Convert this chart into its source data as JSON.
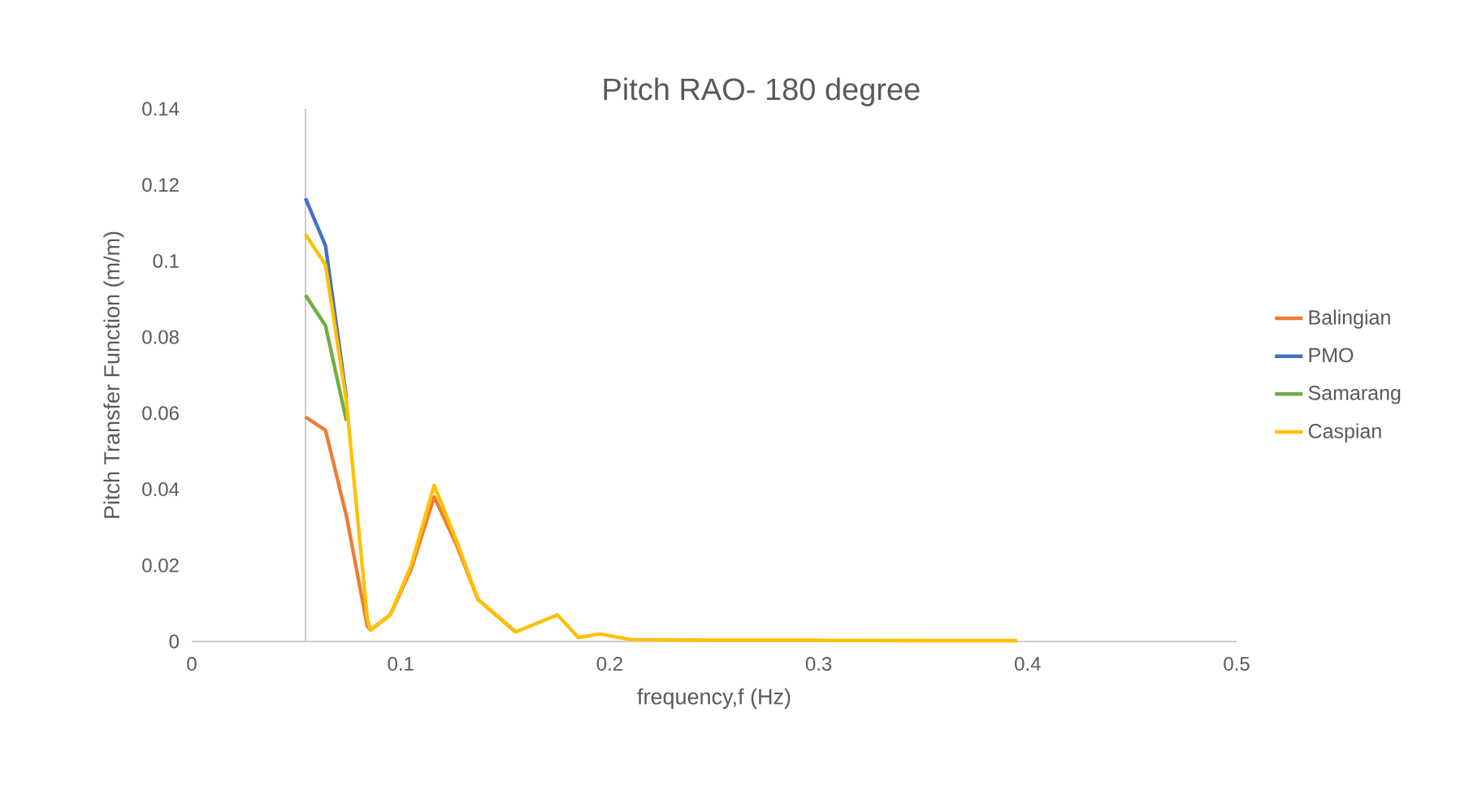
{
  "chart_data": {
    "type": "line",
    "title": "Pitch RAO- 180 degree",
    "xlabel": "frequency,f (Hz)",
    "ylabel": "Pitch Transfer Function (m/m)",
    "x": [
      0.0544,
      0.064,
      0.074,
      0.084,
      0.0855,
      0.095,
      0.105,
      0.116,
      0.127,
      0.137,
      0.155,
      0.175,
      0.185,
      0.195,
      0.21,
      0.25,
      0.3,
      0.35,
      0.395
    ],
    "series": [
      {
        "name": "Balingian",
        "color": "#ed7d31",
        "values": [
          0.059,
          0.0555,
          0.033,
          0.004,
          0.003,
          0.007,
          0.019,
          0.038,
          0.025,
          0.011,
          0.0025,
          null,
          null,
          null,
          null,
          null,
          null,
          null,
          null
        ]
      },
      {
        "name": "PMO",
        "color": "#4472c4",
        "values": [
          0.1165,
          0.104,
          0.064,
          null,
          null,
          null,
          null,
          null,
          null,
          null,
          null,
          null,
          null,
          null,
          null,
          null,
          null,
          null,
          null
        ]
      },
      {
        "name": "Samarang",
        "color": "#70ad47",
        "values": [
          0.091,
          0.083,
          0.058,
          null,
          null,
          null,
          null,
          null,
          null,
          null,
          null,
          null,
          null,
          null,
          null,
          null,
          null,
          null,
          null
        ]
      },
      {
        "name": "Caspian",
        "color": "#ffc000",
        "values": [
          0.107,
          0.099,
          0.063,
          0.006,
          0.003,
          0.007,
          0.02,
          0.041,
          0.026,
          0.011,
          0.0025,
          0.007,
          0.001,
          0.002,
          0.0005,
          0.0003,
          0.0003,
          0.0002,
          0.0002
        ]
      }
    ],
    "xlim": [
      0,
      0.5
    ],
    "xticks": [
      0,
      0.1,
      0.2,
      0.3,
      0.4,
      0.5
    ],
    "ylim": [
      0,
      0.14
    ],
    "yticks": [
      0,
      0.02,
      0.04,
      0.06,
      0.08,
      0.1,
      0.12,
      0.14
    ],
    "ref_lines": [
      {
        "axis": "x",
        "value": 0.0544,
        "color": "#bfbfbf"
      }
    ],
    "legend": "right",
    "grid": false,
    "marker": "none",
    "line_style": "solid"
  }
}
